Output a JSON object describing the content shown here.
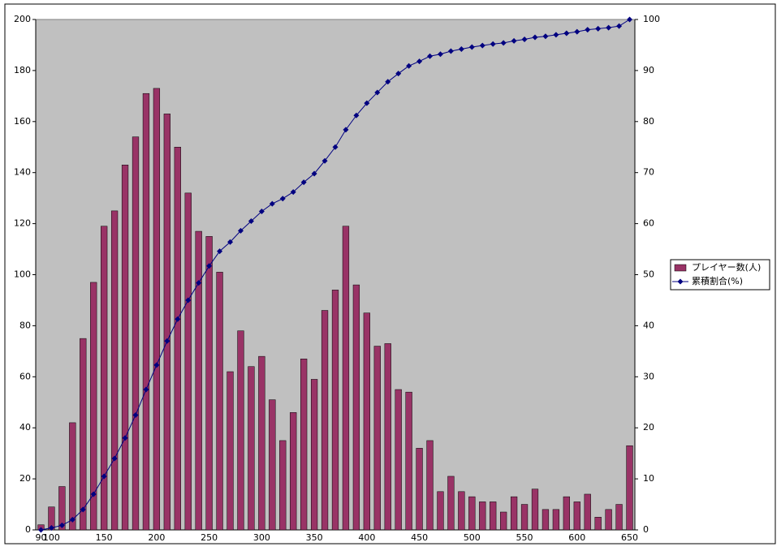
{
  "chart_data": {
    "type": "bar",
    "categories": [
      90,
      100,
      null,
      null,
      null,
      null,
      150,
      null,
      null,
      null,
      null,
      200,
      null,
      null,
      null,
      null,
      250,
      null,
      null,
      null,
      null,
      300,
      null,
      null,
      null,
      null,
      350,
      null,
      null,
      null,
      null,
      400,
      null,
      null,
      null,
      null,
      450,
      null,
      null,
      null,
      null,
      500,
      null,
      null,
      null,
      null,
      550,
      null,
      null,
      null,
      null,
      600,
      null,
      null,
      null,
      null,
      650
    ],
    "series": [
      {
        "name": "プレイヤー数(人)",
        "type": "bar",
        "color": "#993366",
        "values": [
          2,
          9,
          17,
          42,
          75,
          97,
          119,
          125,
          143,
          154,
          171,
          173,
          163,
          150,
          132,
          117,
          115,
          101,
          62,
          78,
          64,
          68,
          51,
          35,
          46,
          67,
          59,
          86,
          94,
          119,
          96,
          85,
          72,
          73,
          55,
          54,
          32,
          35,
          15,
          21,
          15,
          13,
          11,
          11,
          7,
          13,
          10,
          16,
          8,
          8,
          13,
          11,
          14,
          5,
          8,
          10,
          33
        ]
      },
      {
        "name": "累積割合(%)",
        "type": "line",
        "axis": "y2",
        "color": "#000080",
        "values": [
          0,
          0.4,
          0.9,
          2,
          4,
          7,
          10.5,
          14,
          18,
          22.5,
          27.5,
          32.3,
          37,
          41.3,
          45,
          48.4,
          51.7,
          54.6,
          56.4,
          58.6,
          60.5,
          62.4,
          63.9,
          64.9,
          66.2,
          68.1,
          69.8,
          72.3,
          75,
          78.4,
          81.2,
          83.6,
          85.7,
          87.8,
          89.4,
          90.9,
          91.8,
          92.8,
          93.2,
          93.8,
          94.2,
          94.6,
          94.9,
          95.2,
          95.4,
          95.8,
          96.1,
          96.5,
          96.7,
          97,
          97.3,
          97.6,
          98,
          98.2,
          98.4,
          98.7,
          100
        ]
      }
    ],
    "ylim": [
      0,
      200
    ],
    "yticks": [
      0,
      20,
      40,
      60,
      80,
      100,
      120,
      140,
      160,
      180,
      200
    ],
    "y2lim": [
      0,
      100
    ],
    "y2ticks": [
      0,
      10,
      20,
      30,
      40,
      50,
      60,
      70,
      80,
      90,
      100
    ],
    "plot_background": "#c0c0c0",
    "legend": "right"
  }
}
